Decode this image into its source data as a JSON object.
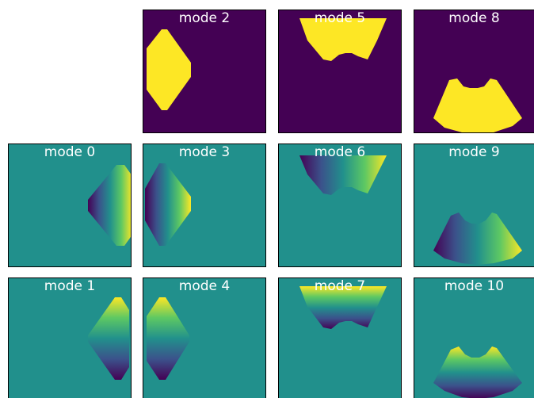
{
  "colors": {
    "purple": "#440154",
    "teal": "#21908c",
    "yellow": "#fde725",
    "colormap": "viridis"
  },
  "panels": [
    {
      "id": "mode-2",
      "title": "mode 2",
      "render": "mask",
      "shape": "left-shield"
    },
    {
      "id": "mode-5",
      "title": "mode 5",
      "render": "mask",
      "shape": "top-bowl"
    },
    {
      "id": "mode-8",
      "title": "mode 8",
      "render": "mask",
      "shape": "bottom-fan"
    },
    {
      "id": "mode-0",
      "title": "mode 0",
      "render": "gradient",
      "shape": "right-shield",
      "direction": "horizontal-left-dark"
    },
    {
      "id": "mode-3",
      "title": "mode 3",
      "render": "gradient",
      "shape": "left-shield",
      "direction": "horizontal-left-dark"
    },
    {
      "id": "mode-6",
      "title": "mode 6",
      "render": "gradient",
      "shape": "top-bowl",
      "direction": "horizontal-left-dark"
    },
    {
      "id": "mode-9",
      "title": "mode 9",
      "render": "gradient",
      "shape": "bottom-fan",
      "direction": "horizontal-left-dark"
    },
    {
      "id": "mode-1",
      "title": "mode 1",
      "render": "gradient",
      "shape": "right-diamond",
      "direction": "vertical-bottom-dark"
    },
    {
      "id": "mode-4",
      "title": "mode 4",
      "render": "gradient",
      "shape": "left-diamond",
      "direction": "vertical-bottom-dark"
    },
    {
      "id": "mode-7",
      "title": "mode 7",
      "render": "gradient",
      "shape": "top-bowl",
      "direction": "vertical-bottom-dark"
    },
    {
      "id": "mode-10",
      "title": "mode 10",
      "render": "gradient",
      "shape": "bottom-fan",
      "direction": "vertical-bottom-dark"
    }
  ]
}
